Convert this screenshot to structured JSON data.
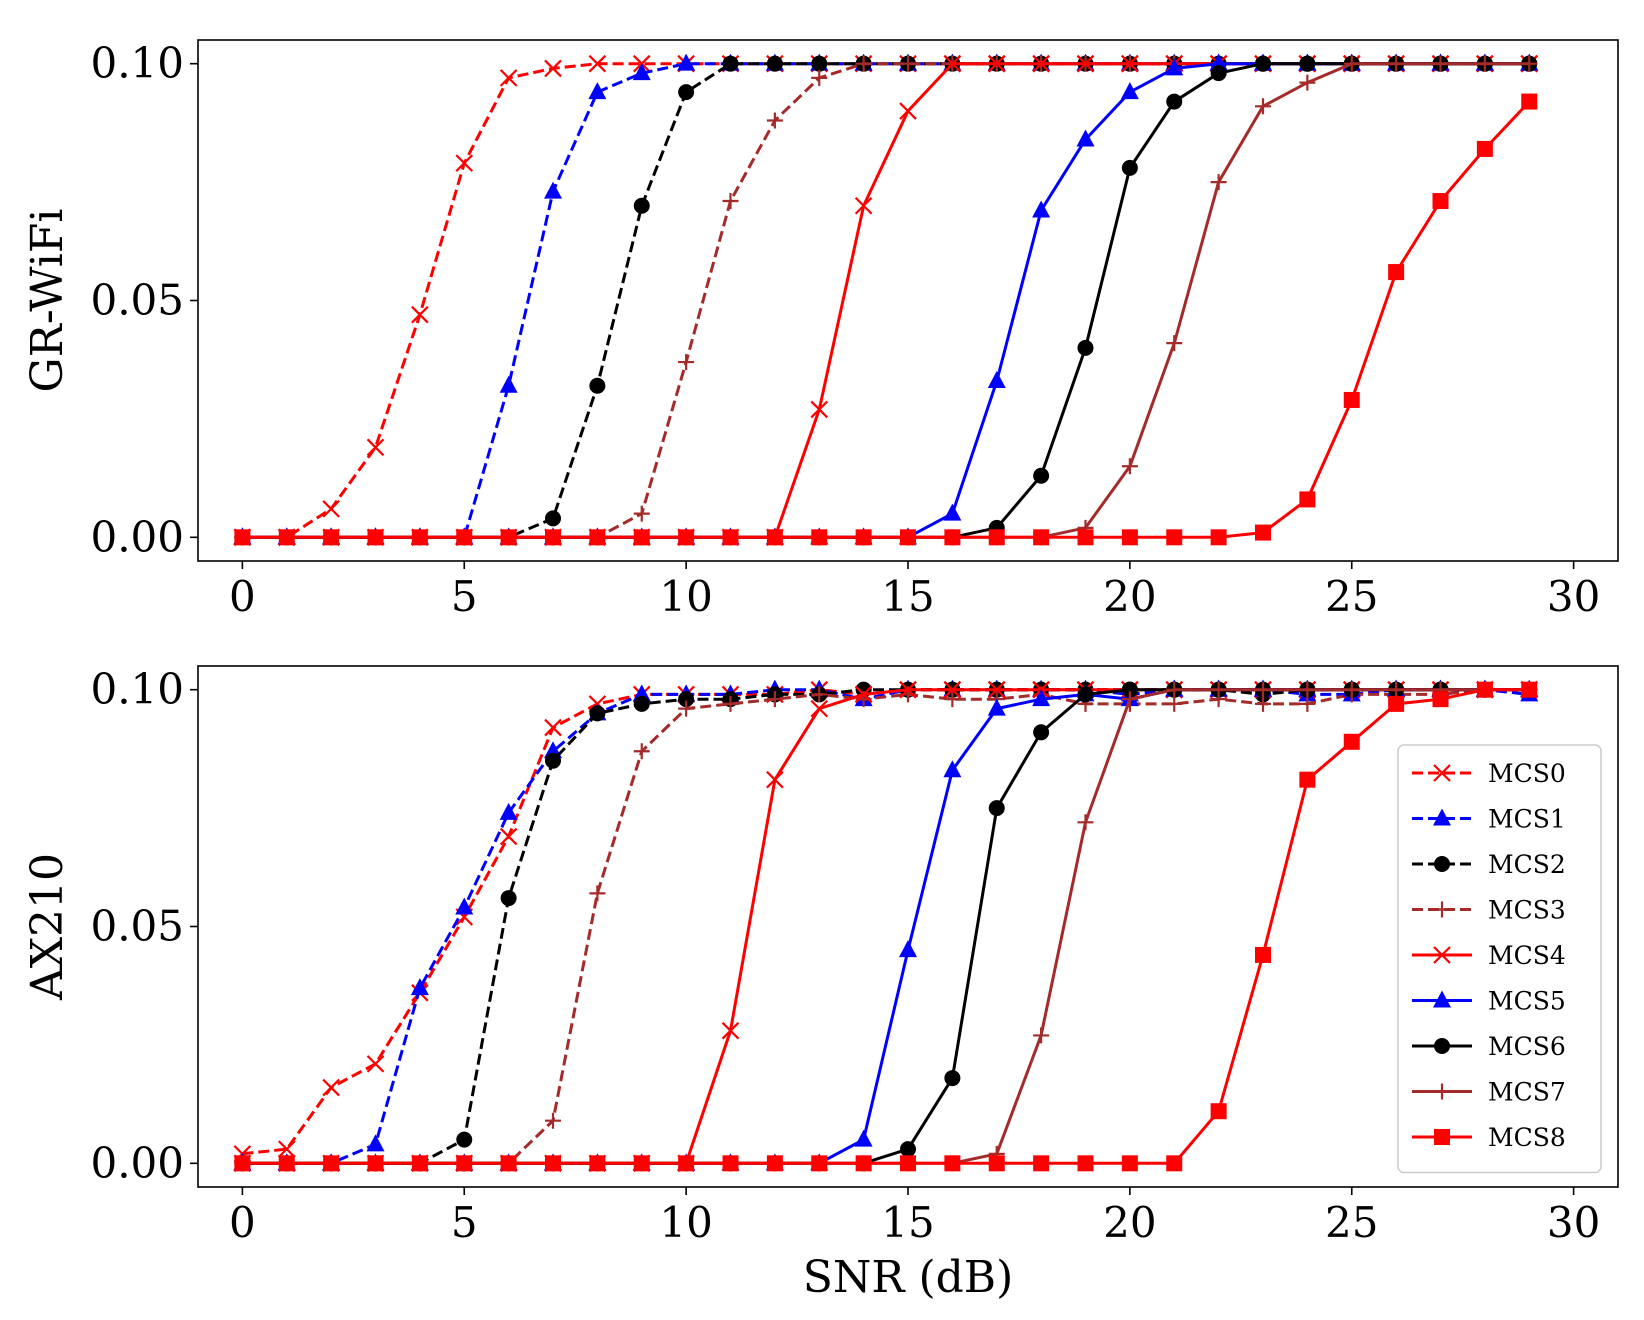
{
  "chart_data": [
    {
      "type": "line",
      "ylabel": "GR-WiFi",
      "xlabel": "",
      "xlim": [
        -1,
        31
      ],
      "ylim": [
        -0.005,
        0.105
      ],
      "xticks": [
        "0",
        "5",
        "10",
        "15",
        "20",
        "25",
        "30"
      ],
      "yticks": [
        "0.00",
        "0.05",
        "0.10"
      ],
      "grid": false,
      "legend": false,
      "x": [
        0,
        1,
        2,
        3,
        4,
        5,
        6,
        7,
        8,
        9,
        10,
        11,
        12,
        13,
        14,
        15,
        16,
        17,
        18,
        19,
        20,
        21,
        22,
        23,
        24,
        25,
        26,
        27,
        28,
        29
      ],
      "series": [
        {
          "name": "MCS0",
          "color": "#ff0000",
          "dash": "dashed",
          "marker": "x",
          "values": [
            0,
            0,
            0.006,
            0.019,
            0.047,
            0.079,
            0.097,
            0.099,
            0.1,
            0.1,
            0.1,
            0.1,
            0.1,
            0.1,
            0.1,
            0.1,
            0.1,
            0.1,
            0.1,
            0.1,
            0.1,
            0.1,
            0.1,
            0.1,
            0.1,
            0.1,
            0.1,
            0.1,
            0.1,
            0.1
          ]
        },
        {
          "name": "MCS1",
          "color": "#0000ff",
          "dash": "dashed",
          "marker": "triangle",
          "values": [
            0,
            0,
            0,
            0,
            0,
            0,
            0.032,
            0.073,
            0.094,
            0.098,
            0.1,
            0.1,
            0.1,
            0.1,
            0.1,
            0.1,
            0.1,
            0.1,
            0.1,
            0.1,
            0.1,
            0.1,
            0.1,
            0.1,
            0.1,
            0.1,
            0.1,
            0.1,
            0.1,
            0.1
          ]
        },
        {
          "name": "MCS2",
          "color": "#000000",
          "dash": "dashed",
          "marker": "circle",
          "values": [
            0,
            0,
            0,
            0,
            0,
            0,
            0,
            0.004,
            0.032,
            0.07,
            0.094,
            0.1,
            0.1,
            0.1,
            0.1,
            0.1,
            0.1,
            0.1,
            0.1,
            0.1,
            0.1,
            0.1,
            0.1,
            0.1,
            0.1,
            0.1,
            0.1,
            0.1,
            0.1,
            0.1
          ]
        },
        {
          "name": "MCS3",
          "color": "#a52a2a",
          "dash": "dashed",
          "marker": "plus",
          "values": [
            0,
            0,
            0,
            0,
            0,
            0,
            0,
            0,
            0,
            0.005,
            0.037,
            0.071,
            0.088,
            0.097,
            0.1,
            0.1,
            0.1,
            0.1,
            0.1,
            0.1,
            0.1,
            0.1,
            0.1,
            0.1,
            0.1,
            0.1,
            0.1,
            0.1,
            0.1,
            0.1
          ]
        },
        {
          "name": "MCS4",
          "color": "#ff0000",
          "dash": "solid",
          "marker": "x",
          "values": [
            0,
            0,
            0,
            0,
            0,
            0,
            0,
            0,
            0,
            0,
            0,
            0,
            0,
            0.027,
            0.07,
            0.09,
            0.1,
            0.1,
            0.1,
            0.1,
            0.1,
            0.1,
            0.1,
            0.1,
            0.1,
            0.1,
            0.1,
            0.1,
            0.1,
            0.1
          ]
        },
        {
          "name": "MCS5",
          "color": "#0000ff",
          "dash": "solid",
          "marker": "triangle",
          "values": [
            0,
            0,
            0,
            0,
            0,
            0,
            0,
            0,
            0,
            0,
            0,
            0,
            0,
            0,
            0,
            0,
            0.005,
            0.033,
            0.069,
            0.084,
            0.094,
            0.099,
            0.1,
            0.1,
            0.1,
            0.1,
            0.1,
            0.1,
            0.1,
            0.1
          ]
        },
        {
          "name": "MCS6",
          "color": "#000000",
          "dash": "solid",
          "marker": "circle",
          "values": [
            0,
            0,
            0,
            0,
            0,
            0,
            0,
            0,
            0,
            0,
            0,
            0,
            0,
            0,
            0,
            0,
            0,
            0.002,
            0.013,
            0.04,
            0.078,
            0.092,
            0.098,
            0.1,
            0.1,
            0.1,
            0.1,
            0.1,
            0.1,
            0.1
          ]
        },
        {
          "name": "MCS7",
          "color": "#a52a2a",
          "dash": "solid",
          "marker": "plus",
          "values": [
            0,
            0,
            0,
            0,
            0,
            0,
            0,
            0,
            0,
            0,
            0,
            0,
            0,
            0,
            0,
            0,
            0,
            0,
            0,
            0.002,
            0.015,
            0.041,
            0.075,
            0.091,
            0.096,
            0.1,
            0.1,
            0.1,
            0.1,
            0.1
          ]
        },
        {
          "name": "MCS8",
          "color": "#ff0000",
          "dash": "solid",
          "marker": "square",
          "values": [
            0,
            0,
            0,
            0,
            0,
            0,
            0,
            0,
            0,
            0,
            0,
            0,
            0,
            0,
            0,
            0,
            0,
            0,
            0,
            0,
            0,
            0,
            0,
            0.001,
            0.008,
            0.029,
            0.056,
            0.071,
            0.082,
            0.092
          ]
        }
      ]
    },
    {
      "type": "line",
      "ylabel": "AX210",
      "xlabel": "SNR (dB)",
      "xlim": [
        -1,
        31
      ],
      "ylim": [
        -0.005,
        0.105
      ],
      "xticks": [
        "0",
        "5",
        "10",
        "15",
        "20",
        "25",
        "30"
      ],
      "yticks": [
        "0.00",
        "0.05",
        "0.10"
      ],
      "grid": false,
      "legend": true,
      "legend_position": "center-right",
      "x": [
        0,
        1,
        2,
        3,
        4,
        5,
        6,
        7,
        8,
        9,
        10,
        11,
        12,
        13,
        14,
        15,
        16,
        17,
        18,
        19,
        20,
        21,
        22,
        23,
        24,
        25,
        26,
        27,
        28,
        29
      ],
      "series": [
        {
          "name": "MCS0",
          "color": "#ff0000",
          "dash": "dashed",
          "marker": "x",
          "values": [
            0.002,
            0.003,
            0.016,
            0.021,
            0.036,
            0.052,
            0.069,
            0.092,
            0.097,
            0.099,
            0.099,
            0.099,
            0.099,
            0.1,
            0.099,
            0.1,
            0.1,
            0.1,
            0.1,
            0.1,
            0.1,
            0.1,
            0.1,
            0.1,
            0.1,
            0.1,
            0.1,
            0.1,
            0.1,
            0.1
          ]
        },
        {
          "name": "MCS1",
          "color": "#0000ff",
          "dash": "dashed",
          "marker": "triangle",
          "values": [
            0,
            0,
            0,
            0.004,
            0.037,
            0.054,
            0.074,
            0.087,
            0.095,
            0.099,
            0.099,
            0.099,
            0.1,
            0.1,
            0.098,
            0.1,
            0.1,
            0.1,
            0.1,
            0.1,
            0.099,
            0.1,
            0.1,
            0.1,
            0.099,
            0.099,
            0.1,
            0.1,
            0.1,
            0.099
          ]
        },
        {
          "name": "MCS2",
          "color": "#000000",
          "dash": "dashed",
          "marker": "circle",
          "values": [
            0,
            0,
            0,
            0,
            0,
            0.005,
            0.056,
            0.085,
            0.095,
            0.097,
            0.098,
            0.098,
            0.099,
            0.099,
            0.1,
            0.1,
            0.1,
            0.1,
            0.1,
            0.1,
            0.1,
            0.1,
            0.1,
            0.099,
            0.1,
            0.1,
            0.1,
            0.1,
            0.1,
            0.1
          ]
        },
        {
          "name": "MCS3",
          "color": "#a52a2a",
          "dash": "dashed",
          "marker": "plus",
          "values": [
            0,
            0,
            0,
            0,
            0,
            0,
            0,
            0.009,
            0.057,
            0.087,
            0.096,
            0.097,
            0.098,
            0.099,
            0.098,
            0.099,
            0.098,
            0.098,
            0.099,
            0.097,
            0.097,
            0.097,
            0.098,
            0.097,
            0.097,
            0.099,
            0.099,
            0.099,
            0.1,
            0.1
          ]
        },
        {
          "name": "MCS4",
          "color": "#ff0000",
          "dash": "solid",
          "marker": "x",
          "values": [
            0,
            0,
            0,
            0,
            0,
            0,
            0,
            0,
            0,
            0,
            0,
            0.028,
            0.081,
            0.096,
            0.099,
            0.1,
            0.1,
            0.1,
            0.1,
            0.1,
            0.1,
            0.1,
            0.1,
            0.1,
            0.1,
            0.1,
            0.1,
            0.1,
            0.1,
            0.1
          ]
        },
        {
          "name": "MCS5",
          "color": "#0000ff",
          "dash": "solid",
          "marker": "triangle",
          "values": [
            0,
            0,
            0,
            0,
            0,
            0,
            0,
            0,
            0,
            0,
            0,
            0,
            0,
            0,
            0.005,
            0.045,
            0.083,
            0.096,
            0.098,
            0.099,
            0.098,
            0.1,
            0.1,
            0.1,
            0.1,
            0.1,
            0.1,
            0.1,
            0.1,
            0.1
          ]
        },
        {
          "name": "MCS6",
          "color": "#000000",
          "dash": "solid",
          "marker": "circle",
          "values": [
            0,
            0,
            0,
            0,
            0,
            0,
            0,
            0,
            0,
            0,
            0,
            0,
            0,
            0,
            0,
            0.003,
            0.018,
            0.075,
            0.091,
            0.099,
            0.1,
            0.1,
            0.1,
            0.1,
            0.1,
            0.1,
            0.1,
            0.1,
            0.1,
            0.1
          ]
        },
        {
          "name": "MCS7",
          "color": "#a52a2a",
          "dash": "solid",
          "marker": "plus",
          "values": [
            0,
            0,
            0,
            0,
            0,
            0,
            0,
            0,
            0,
            0,
            0,
            0,
            0,
            0,
            0,
            0,
            0,
            0.002,
            0.027,
            0.072,
            0.098,
            0.1,
            0.1,
            0.1,
            0.1,
            0.1,
            0.1,
            0.1,
            0.1,
            0.1
          ]
        },
        {
          "name": "MCS8",
          "color": "#ff0000",
          "dash": "solid",
          "marker": "square",
          "values": [
            0,
            0,
            0,
            0,
            0,
            0,
            0,
            0,
            0,
            0,
            0,
            0,
            0,
            0,
            0,
            0,
            0,
            0,
            0,
            0,
            0,
            0,
            0.011,
            0.044,
            0.081,
            0.089,
            0.097,
            0.098,
            0.1,
            0.1
          ]
        }
      ]
    }
  ]
}
